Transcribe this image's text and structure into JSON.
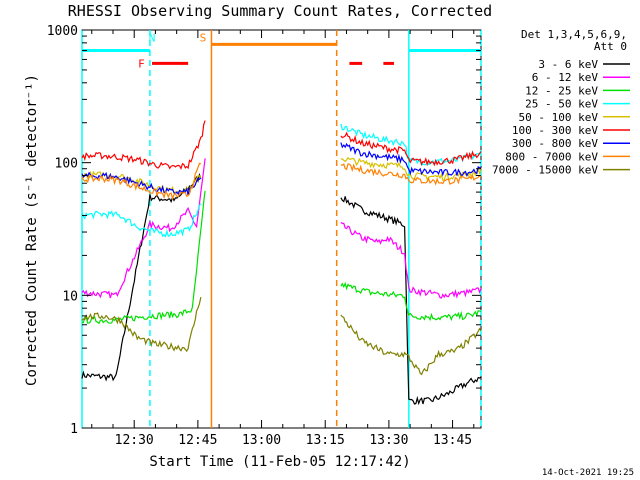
{
  "chart_data": {
    "type": "line",
    "title": "RHESSI Observing Summary Count Rates, Corrected",
    "xlabel": "Start Time (11-Feb-05 12:17:42)",
    "ylabel": "Corrected Count Rate (s⁻¹ detector⁻¹)",
    "x_unit": "minutes after 12:17:42",
    "xlim": [
      0,
      94
    ],
    "x_ticks": [
      {
        "label": "12:30",
        "x": 12.3
      },
      {
        "label": "12:45",
        "x": 27.3
      },
      {
        "label": "13:00",
        "x": 42.3
      },
      {
        "label": "13:15",
        "x": 57.3
      },
      {
        "label": "13:30",
        "x": 72.3
      },
      {
        "label": "13:45",
        "x": 87.3
      }
    ],
    "yscale": "log",
    "ylim": [
      1,
      1000
    ],
    "y_ticks": [
      {
        "label": "1",
        "value": 1
      },
      {
        "label": "10",
        "value": 10
      },
      {
        "label": "100",
        "value": 100
      },
      {
        "label": "1000",
        "value": 1000
      }
    ],
    "legend": {
      "placement": "right",
      "header_lines": [
        "Det 1,3,4,5,6,9,",
        "Att 0"
      ]
    },
    "series": [
      {
        "name": "3 - 6 keV",
        "color": "#000000",
        "points": [
          [
            0,
            2.5
          ],
          [
            8,
            2.4
          ],
          [
            16,
            55
          ],
          [
            22,
            52
          ],
          [
            28,
            80
          ],
          [
            29,
            null
          ],
          [
            61,
            55
          ],
          [
            66,
            44
          ],
          [
            72,
            38
          ],
          [
            76,
            34
          ],
          [
            77,
            1.6
          ],
          [
            82,
            1.6
          ],
          [
            86,
            1.8
          ],
          [
            91,
            2.2
          ],
          [
            94,
            2.4
          ]
        ]
      },
      {
        "name": "6 - 12 keV",
        "color": "#ff00ff",
        "points": [
          [
            0,
            10.5
          ],
          [
            8,
            10
          ],
          [
            16,
            34
          ],
          [
            21,
            32
          ],
          [
            25,
            43
          ],
          [
            27,
            33
          ],
          [
            29,
            105
          ],
          [
            29.5,
            null
          ],
          [
            61,
            34
          ],
          [
            66,
            27
          ],
          [
            70,
            25
          ],
          [
            72,
            27
          ],
          [
            76,
            21
          ],
          [
            77,
            11
          ],
          [
            85,
            10
          ],
          [
            91,
            10.5
          ],
          [
            94,
            11
          ]
        ]
      },
      {
        "name": "12 - 25 keV",
        "color": "#00e000",
        "points": [
          [
            0,
            6.5
          ],
          [
            8,
            6.5
          ],
          [
            16,
            7
          ],
          [
            23,
            7.2
          ],
          [
            26,
            7.8
          ],
          [
            29,
            60
          ],
          [
            29.5,
            null
          ],
          [
            61,
            12
          ],
          [
            68,
            10.5
          ],
          [
            74,
            10
          ],
          [
            76,
            10
          ],
          [
            77,
            7
          ],
          [
            85,
            6.8
          ],
          [
            91,
            7
          ],
          [
            94,
            7.5
          ]
        ]
      },
      {
        "name": "25 - 50 keV",
        "color": "#00ffff",
        "points": [
          [
            0,
            40
          ],
          [
            5,
            41
          ],
          [
            9,
            40
          ],
          [
            13,
            33
          ],
          [
            17,
            30
          ],
          [
            21,
            29
          ],
          [
            25,
            31
          ],
          [
            28,
            48
          ],
          [
            29,
            null
          ],
          [
            61,
            190
          ],
          [
            66,
            162
          ],
          [
            72,
            147
          ],
          [
            76,
            141
          ],
          [
            77,
            103
          ],
          [
            82,
            101
          ],
          [
            88,
            104
          ],
          [
            94,
            115
          ]
        ]
      },
      {
        "name": "50 - 100 keV",
        "color": "#d8c000",
        "points": [
          [
            0,
            80
          ],
          [
            5,
            81
          ],
          [
            9,
            79
          ],
          [
            13,
            73
          ],
          [
            17,
            66
          ],
          [
            21,
            62
          ],
          [
            25,
            62
          ],
          [
            28,
            80
          ],
          [
            29,
            null
          ],
          [
            61,
            108
          ],
          [
            66,
            100
          ],
          [
            72,
            96
          ],
          [
            76,
            94
          ],
          [
            77,
            80
          ],
          [
            85,
            78
          ],
          [
            91,
            82
          ],
          [
            94,
            87
          ]
        ]
      },
      {
        "name": "100 - 300 keV",
        "color": "#ff0000",
        "points": [
          [
            0,
            112
          ],
          [
            5,
            113
          ],
          [
            9,
            110
          ],
          [
            13,
            105
          ],
          [
            17,
            97
          ],
          [
            21,
            92
          ],
          [
            25,
            95
          ],
          [
            28,
            150
          ],
          [
            29,
            210
          ],
          [
            29.5,
            null
          ],
          [
            61,
            165
          ],
          [
            66,
            140
          ],
          [
            72,
            128
          ],
          [
            76,
            123
          ],
          [
            77,
            103
          ],
          [
            82,
            101
          ],
          [
            88,
            105
          ],
          [
            94,
            118
          ]
        ]
      },
      {
        "name": "300 - 800 keV",
        "color": "#0000ff",
        "points": [
          [
            0,
            79
          ],
          [
            5,
            80
          ],
          [
            9,
            77
          ],
          [
            13,
            70
          ],
          [
            17,
            64
          ],
          [
            21,
            60
          ],
          [
            25,
            60
          ],
          [
            28,
            76
          ],
          [
            29,
            null
          ],
          [
            61,
            137
          ],
          [
            66,
            118
          ],
          [
            72,
            110
          ],
          [
            76,
            105
          ],
          [
            77,
            87
          ],
          [
            85,
            84
          ],
          [
            91,
            85
          ],
          [
            94,
            89
          ]
        ]
      },
      {
        "name": "800 - 7000 keV",
        "color": "#ff8000",
        "points": [
          [
            0,
            75
          ],
          [
            5,
            76
          ],
          [
            9,
            73
          ],
          [
            13,
            66
          ],
          [
            17,
            60
          ],
          [
            21,
            56
          ],
          [
            25,
            57
          ],
          [
            28,
            100
          ],
          [
            29,
            null
          ],
          [
            61,
            95
          ],
          [
            66,
            88
          ],
          [
            72,
            83
          ],
          [
            76,
            81
          ],
          [
            77,
            74
          ],
          [
            85,
            72
          ],
          [
            91,
            75
          ],
          [
            94,
            80
          ]
        ]
      },
      {
        "name": "7000 - 15000 keV",
        "color": "#808000",
        "points": [
          [
            0,
            6.8
          ],
          [
            5,
            7
          ],
          [
            9,
            6.5
          ],
          [
            13,
            4.8
          ],
          [
            17,
            4.3
          ],
          [
            21,
            4.1
          ],
          [
            25,
            4
          ],
          [
            28,
            10
          ],
          [
            29,
            null
          ],
          [
            61,
            7
          ],
          [
            66,
            4.5
          ],
          [
            72,
            3.6
          ],
          [
            76,
            3.6
          ],
          [
            77,
            3.4
          ],
          [
            80,
            2.5
          ],
          [
            84,
            3.6
          ],
          [
            88,
            3.8
          ],
          [
            91,
            4.5
          ],
          [
            94,
            5.5
          ]
        ]
      }
    ],
    "annotations": {
      "vertical_lines": [
        {
          "x": 0,
          "color": "#00ffff",
          "style": "solid"
        },
        {
          "x": 16,
          "color": "#00ffff",
          "style": "dashed"
        },
        {
          "x": 30.5,
          "color": "#ff8000",
          "style": "solid"
        },
        {
          "x": 60,
          "color": "#ff8000",
          "style": "dashed"
        },
        {
          "x": 77,
          "color": "#00ffff",
          "style": "solid"
        },
        {
          "x": 94,
          "color": "#00ffff",
          "style": "dashed"
        }
      ],
      "markers": [
        {
          "label": "N",
          "x": 16.5,
          "color": "#00ffff"
        },
        {
          "label": "F",
          "x": 14,
          "color": "#ff0000"
        },
        {
          "label": "S",
          "x": 28.5,
          "color": "#ff8000"
        }
      ],
      "bars": [
        {
          "color": "#00ffff",
          "x0": 0,
          "x1": 16,
          "level": 700
        },
        {
          "color": "#00ffff",
          "x0": 77,
          "x1": 94,
          "level": 700
        },
        {
          "color": "#ff8000",
          "x0": 30.5,
          "x1": 60,
          "level": 780
        },
        {
          "color": "#ff0000",
          "x0": 16.5,
          "x1": 25,
          "level": 560
        },
        {
          "color": "#ff0000",
          "x0": 63,
          "x1": 66,
          "level": 560
        },
        {
          "color": "#ff0000",
          "x0": 71,
          "x1": 73.5,
          "level": 560
        }
      ]
    }
  },
  "timestamp": "14-Oct-2021 19:25"
}
